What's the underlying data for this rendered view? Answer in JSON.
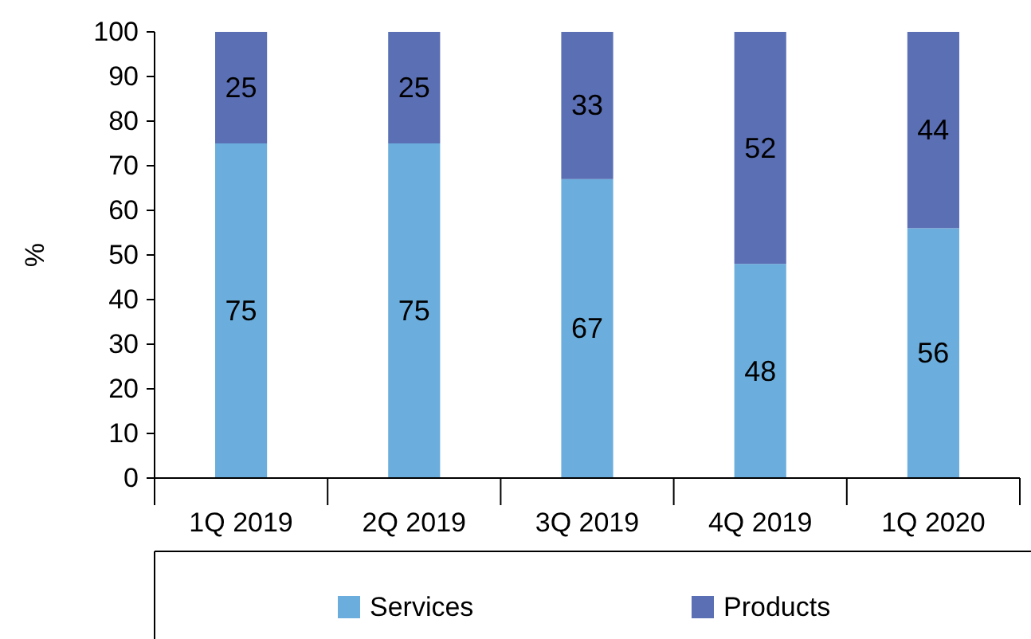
{
  "chart_data": {
    "type": "bar",
    "stacked": true,
    "categories": [
      "1Q 2019",
      "2Q 2019",
      "3Q 2019",
      "4Q 2019",
      "1Q 2020"
    ],
    "series": [
      {
        "name": "Services",
        "color": "#6baedd",
        "values": [
          75,
          75,
          67,
          48,
          56
        ]
      },
      {
        "name": "Products",
        "color": "#5b6fb5",
        "values": [
          25,
          25,
          33,
          52,
          44
        ]
      }
    ],
    "ylabel": "%",
    "ylim": [
      0,
      100
    ],
    "yticks": [
      0,
      10,
      20,
      30,
      40,
      50,
      60,
      70,
      80,
      90,
      100
    ],
    "data_labels": true,
    "legend": "bottom",
    "grid": false
  }
}
